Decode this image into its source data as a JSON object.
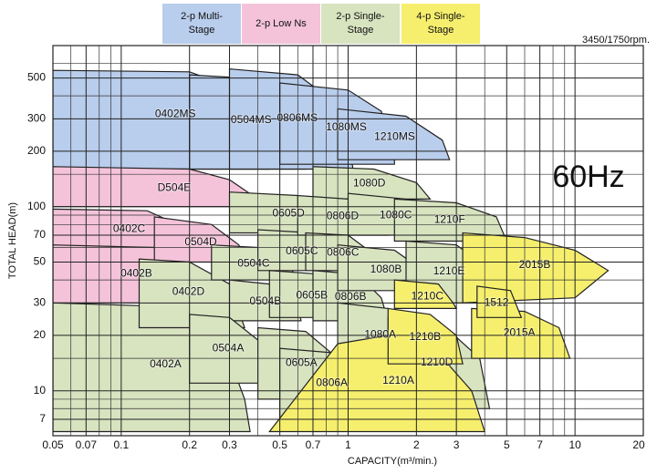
{
  "chart_data": {
    "type": "region",
    "note": "3450/1750rpm.",
    "annotation": "60Hz",
    "x_label": "CAPACITY(m³/min.)",
    "y_label": "TOTAL HEAD(m)",
    "xscale": "log",
    "yscale": "log",
    "grid": true,
    "xlim": [
      0.05,
      20
    ],
    "ylim": [
      5.7,
      750
    ],
    "xticks": [
      0.05,
      0.07,
      0.1,
      0.2,
      0.3,
      0.5,
      0.7,
      1,
      2,
      3,
      5,
      7,
      10,
      20
    ],
    "yticks": [
      7,
      10,
      20,
      30,
      50,
      70,
      100,
      200,
      300,
      500
    ],
    "minor_xticks": [
      0.06,
      0.08,
      0.09,
      0.4,
      0.6,
      0.8,
      0.9,
      4,
      6,
      8,
      9
    ],
    "minor_yticks": [
      8,
      9,
      15,
      40,
      60,
      80,
      90,
      150,
      400,
      600
    ],
    "legend": [
      {
        "label": "2-p Multi-Stage",
        "color": "#b9cdec"
      },
      {
        "label": "2-p Low Ns",
        "color": "#f4c3d9"
      },
      {
        "label": "2-p Single-Stage",
        "color": "#d8e3c0"
      },
      {
        "label": "4-p Single-Stage",
        "color": "#f6ef6e"
      }
    ],
    "series": [
      {
        "name": "0402MS",
        "color": "#b9cdec",
        "x": [
          0.05,
          0.05,
          0.2,
          0.3,
          0.4,
          0.45
        ],
        "y": [
          160,
          550,
          540,
          450,
          300,
          160
        ]
      },
      {
        "name": "0504MS",
        "color": "#b9cdec",
        "x": [
          0.2,
          0.2,
          0.35,
          0.5,
          0.6,
          0.65
        ],
        "y": [
          160,
          520,
          500,
          400,
          250,
          160
        ]
      },
      {
        "name": "0806MS",
        "color": "#b9cdec",
        "x": [
          0.3,
          0.3,
          0.6,
          0.8,
          1.0,
          1.05
        ],
        "y": [
          160,
          560,
          520,
          400,
          250,
          160
        ]
      },
      {
        "name": "1080MS",
        "color": "#b9cdec",
        "x": [
          0.5,
          0.5,
          1.0,
          1.4,
          1.6,
          1.6
        ],
        "y": [
          170,
          470,
          430,
          330,
          200,
          170
        ]
      },
      {
        "name": "1210MS",
        "color": "#b9cdec",
        "x": [
          0.9,
          0.9,
          1.8,
          2.6,
          2.8
        ],
        "y": [
          180,
          340,
          310,
          230,
          180
        ]
      },
      {
        "name": "0402A",
        "color": "#d8e3c0",
        "x": [
          0.05,
          0.05,
          0.12,
          0.2,
          0.3,
          0.35,
          0.37
        ],
        "y": [
          6,
          30,
          29,
          24,
          15,
          9,
          6
        ]
      },
      {
        "name": "D504E",
        "color": "#f4c3d9",
        "x": [
          0.05,
          0.05,
          0.2,
          0.3,
          0.4,
          0.42
        ],
        "y": [
          100,
          165,
          160,
          140,
          110,
          100
        ]
      },
      {
        "name": "1080D",
        "color": "#d8e3c0",
        "x": [
          0.7,
          0.7,
          1.3,
          2.0,
          2.3
        ],
        "y": [
          110,
          165,
          160,
          135,
          110
        ]
      },
      {
        "name": "0402C",
        "color": "#f4c3d9",
        "x": [
          0.05,
          0.05,
          0.13,
          0.2,
          0.23
        ],
        "y": [
          60,
          97,
          95,
          75,
          60
        ]
      },
      {
        "name": "0402B",
        "color": "#f4c3d9",
        "x": [
          0.05,
          0.05,
          0.14,
          0.22,
          0.28
        ],
        "y": [
          30,
          62,
          60,
          45,
          30
        ]
      },
      {
        "name": "0504D",
        "color": "#f4c3d9",
        "x": [
          0.14,
          0.14,
          0.25,
          0.33,
          0.35
        ],
        "y": [
          50,
          88,
          80,
          62,
          50
        ]
      },
      {
        "name": "0402D",
        "color": "#d8e3c0",
        "x": [
          0.12,
          0.12,
          0.2,
          0.3,
          0.35
        ],
        "y": [
          22,
          52,
          50,
          38,
          22
        ]
      },
      {
        "name": "0504C",
        "color": "#d8e3c0",
        "x": [
          0.25,
          0.25,
          0.4,
          0.55,
          0.6
        ],
        "y": [
          40,
          62,
          60,
          48,
          40
        ]
      },
      {
        "name": "0504B",
        "color": "#d8e3c0",
        "x": [
          0.3,
          0.3,
          0.45,
          0.6,
          0.62
        ],
        "y": [
          24,
          40,
          38,
          30,
          24
        ]
      },
      {
        "name": "0504A",
        "color": "#d8e3c0",
        "x": [
          0.2,
          0.2,
          0.3,
          0.42,
          0.45
        ],
        "y": [
          11,
          26,
          25,
          18,
          11
        ]
      },
      {
        "name": "0605D",
        "color": "#d8e3c0",
        "x": [
          0.3,
          0.3,
          0.6,
          0.9,
          1.0
        ],
        "y": [
          72,
          120,
          115,
          90,
          72
        ]
      },
      {
        "name": "0605C",
        "color": "#d8e3c0",
        "x": [
          0.4,
          0.4,
          0.7,
          0.9,
          0.95
        ],
        "y": [
          45,
          75,
          72,
          55,
          45
        ]
      },
      {
        "name": "0605B",
        "color": "#d8e3c0",
        "x": [
          0.45,
          0.45,
          0.75,
          1.0,
          1.05
        ],
        "y": [
          25,
          45,
          43,
          32,
          25
        ]
      },
      {
        "name": "0605A",
        "color": "#d8e3c0",
        "x": [
          0.4,
          0.4,
          0.65,
          0.9,
          1.0
        ],
        "y": [
          9,
          22,
          21,
          15,
          9
        ]
      },
      {
        "name": "0806D",
        "color": "#d8e3c0",
        "x": [
          0.6,
          0.6,
          1.0,
          1.4,
          1.5
        ],
        "y": [
          70,
          115,
          110,
          88,
          70
        ]
      },
      {
        "name": "0806C",
        "color": "#d8e3c0",
        "x": [
          0.65,
          0.65,
          1.0,
          1.3,
          1.4
        ],
        "y": [
          45,
          72,
          70,
          55,
          45
        ]
      },
      {
        "name": "0806B",
        "color": "#d8e3c0",
        "x": [
          0.7,
          0.7,
          1.1,
          1.4,
          1.5
        ],
        "y": [
          24,
          45,
          43,
          32,
          24
        ]
      },
      {
        "name": "0806A",
        "color": "#d8e3c0",
        "x": [
          0.5,
          0.5,
          0.9,
          1.3,
          1.5
        ],
        "y": [
          7,
          17,
          16,
          12,
          7
        ]
      },
      {
        "name": "1080C",
        "color": "#d8e3c0",
        "x": [
          1.0,
          1.0,
          1.8,
          2.4,
          2.6
        ],
        "y": [
          70,
          118,
          110,
          90,
          70
        ]
      },
      {
        "name": "1080B",
        "color": "#d8e3c0",
        "x": [
          0.9,
          0.9,
          1.6,
          2.2,
          2.4
        ],
        "y": [
          35,
          62,
          58,
          44,
          35
        ]
      },
      {
        "name": "1080A",
        "color": "#d8e3c0",
        "x": [
          0.9,
          0.9,
          1.5,
          2.0,
          2.1
        ],
        "y": [
          14,
          30,
          28,
          20,
          14
        ]
      },
      {
        "name": "1210F",
        "color": "#d8e3c0",
        "x": [
          1.6,
          1.6,
          3.0,
          4.5,
          5.0
        ],
        "y": [
          65,
          110,
          105,
          88,
          65
        ]
      },
      {
        "name": "1210E",
        "color": "#d8e3c0",
        "x": [
          1.8,
          1.8,
          3.0,
          4.0,
          4.3
        ],
        "y": [
          30,
          65,
          62,
          48,
          30
        ]
      },
      {
        "name": "1210D",
        "color": "#d8e3c0",
        "x": [
          1.5,
          1.5,
          2.5,
          3.8,
          4.2
        ],
        "y": [
          8,
          25,
          24,
          15,
          8
        ]
      },
      {
        "name": "1210A",
        "color": "#f6ef6e",
        "x": [
          0.45,
          0.9,
          1.5,
          2.5,
          3.5,
          4.0
        ],
        "y": [
          6,
          18,
          20,
          16,
          10,
          6
        ]
      },
      {
        "name": "1210B",
        "color": "#f6ef6e",
        "x": [
          1.5,
          1.5,
          2.3,
          3.0,
          3.2
        ],
        "y": [
          14,
          28,
          26,
          20,
          14
        ]
      },
      {
        "name": "1210C",
        "color": "#f6ef6e",
        "x": [
          1.6,
          1.6,
          2.5,
          2.9,
          3.0
        ],
        "y": [
          28,
          40,
          38,
          30,
          28
        ]
      },
      {
        "name": "2015B",
        "color": "#f6ef6e",
        "x": [
          3.2,
          3.2,
          6,
          10,
          14,
          10
        ],
        "y": [
          30,
          72,
          68,
          58,
          45,
          32
        ]
      },
      {
        "name": "2015A",
        "color": "#f6ef6e",
        "x": [
          3.5,
          3.5,
          6,
          8.5,
          9.5
        ],
        "y": [
          15,
          28,
          27,
          22,
          15
        ]
      },
      {
        "name": "1512",
        "color": "#f6ef6e",
        "x": [
          3.7,
          3.7,
          5.2,
          5.8
        ],
        "y": [
          25,
          37,
          35,
          25
        ]
      }
    ]
  }
}
